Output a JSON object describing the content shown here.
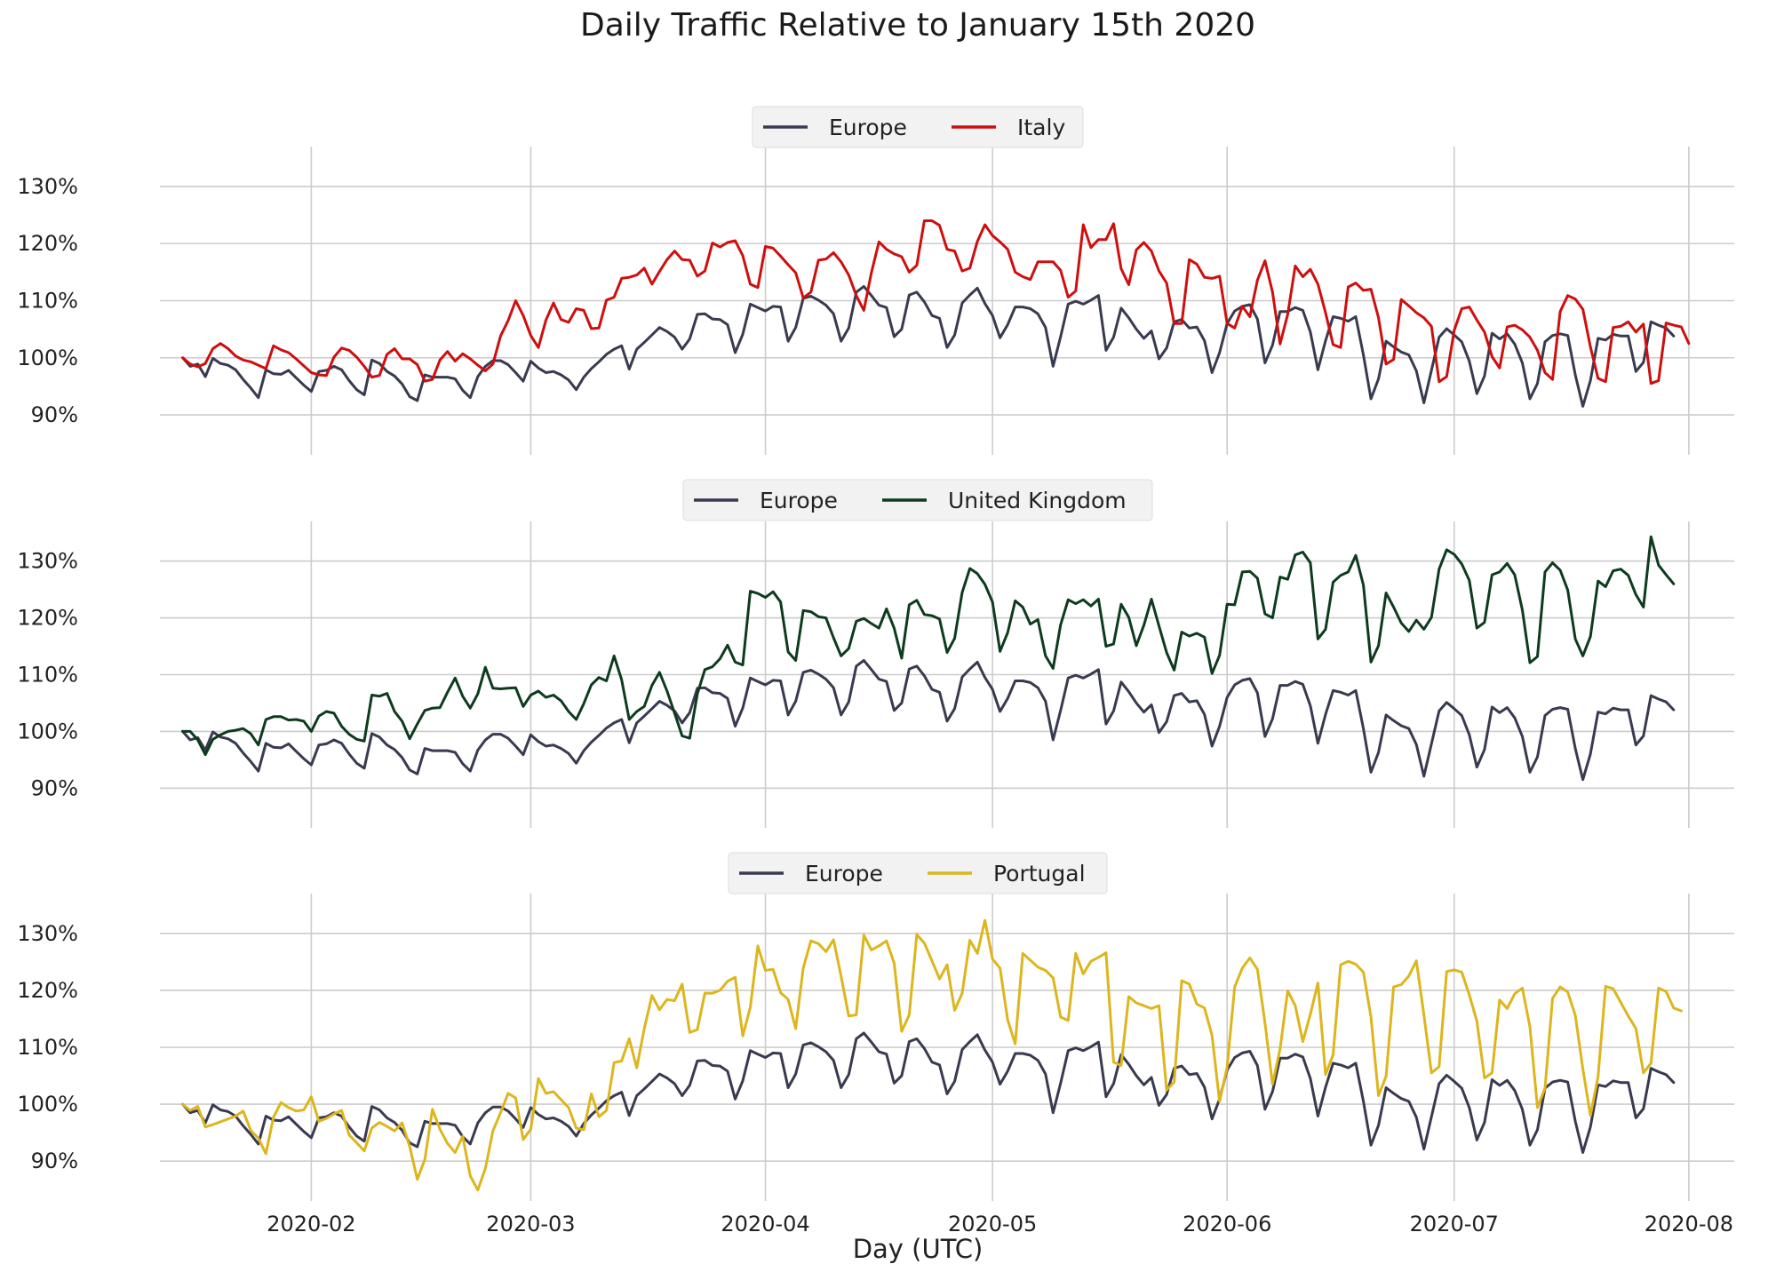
{
  "chart_data": {
    "type": "line",
    "title": "Daily Traffic Relative to January 15th 2020",
    "xlabel": "Day (UTC)",
    "start_date": "2020-01-15",
    "x_ticks": [
      "2020-02",
      "2020-03",
      "2020-04",
      "2020-05",
      "2020-06",
      "2020-07",
      "2020-08"
    ],
    "x_tick_day_index": [
      17,
      46,
      77,
      107,
      138,
      168,
      199
    ],
    "xlim_day_index": [
      -3,
      205
    ],
    "y_ticks": [
      "90%",
      "100%",
      "110%",
      "120%",
      "130%"
    ],
    "y_tick_values": [
      90,
      100,
      110,
      120,
      130
    ],
    "ylim": [
      83,
      137
    ],
    "grid": true,
    "legend_position": "top-center",
    "europe_series": [
      100,
      98.5,
      98.9,
      96.7,
      99.9,
      99.0,
      98.7,
      97.9,
      96.2,
      94.7,
      93.0,
      97.9,
      97.2,
      97.1,
      97.8,
      96.5,
      95.2,
      94.1,
      97.6,
      97.8,
      98.5,
      97.9,
      96.0,
      94.4,
      93.5,
      99.6,
      99.0,
      97.6,
      96.8,
      95.4,
      93.2,
      92.5,
      97.0,
      96.6,
      96.6,
      96.6,
      96.3,
      94.3,
      93.0,
      96.7,
      98.5,
      99.5,
      99.5,
      98.8,
      97.4,
      95.9,
      99.4,
      98.2,
      97.4,
      97.6,
      97.0,
      96.1,
      94.4,
      96.6,
      98.1,
      99.3,
      100.6,
      101.5,
      102.1,
      98.0,
      101.5,
      102.7,
      104.0,
      105.3,
      104.6,
      103.6,
      101.5,
      103.3,
      107.6,
      107.7,
      106.8,
      106.7,
      105.8,
      100.9,
      104.1,
      109.4,
      108.8,
      108.2,
      109.0,
      108.9,
      102.9,
      105.3,
      110.4,
      110.8,
      110.1,
      109.2,
      107.7,
      102.9,
      105.2,
      111.5,
      112.5,
      110.9,
      109.2,
      108.8,
      103.7,
      105.0,
      111.0,
      111.5,
      109.8,
      107.4,
      106.9,
      101.8,
      104.0,
      109.6,
      111.0,
      112.2,
      109.5,
      107.4,
      103.5,
      105.8,
      108.9,
      108.9,
      108.6,
      107.7,
      105.3,
      98.5,
      103.7,
      109.4,
      109.9,
      109.4,
      110.1,
      110.9,
      101.3,
      103.6,
      108.7,
      107.0,
      105.0,
      103.4,
      104.7,
      99.8,
      101.7,
      106.3,
      106.7,
      105.2,
      105.4,
      103.0,
      97.4,
      100.9,
      106.0,
      108.2,
      109.0,
      109.3,
      106.8,
      99.1,
      102.2,
      108.1,
      108.1,
      108.8,
      108.3,
      104.5,
      97.9,
      103.0,
      107.2,
      106.9,
      106.4,
      107.2,
      100.5,
      92.8,
      96.3,
      102.9,
      101.9,
      101.0,
      100.5,
      97.7,
      92.1,
      97.8,
      103.6,
      105.1,
      104.0,
      102.8,
      99.4,
      93.7,
      96.8,
      104.3,
      103.3,
      104.2,
      102.4,
      99.1,
      92.8,
      95.5,
      102.8,
      103.9,
      104.2,
      103.9,
      97.0,
      91.5,
      96.0,
      103.4,
      103.1,
      104.1,
      103.8,
      103.8,
      97.6,
      99.2,
      106.3,
      105.7,
      105.2,
      103.8
    ],
    "series_by_panel": [
      {
        "panel": "Italy",
        "series": [
          {
            "name": "Europe",
            "color": "#383a4f",
            "ref": "europe_series"
          },
          {
            "name": "Italy",
            "color": "#cf0e0e",
            "values": [
              100,
              98.9,
              98.4,
              99.0,
              101.6,
              102.5,
              101.6,
              100.3,
              99.6,
              99.3,
              98.7,
              98.1,
              102.1,
              101.4,
              100.9,
              99.8,
              98.6,
              97.4,
              97.0,
              96.9,
              100.1,
              101.7,
              101.3,
              100.1,
              98.5,
              96.6,
              96.9,
              100.6,
              101.6,
              99.8,
              99.8,
              98.8,
              95.9,
              96.2,
              99.6,
              101.1,
              99.4,
              100.7,
              99.8,
              98.7,
              97.7,
              98.9,
              103.8,
              106.5,
              110.0,
              107.4,
              103.9,
              101.8,
              106.6,
              109.6,
              106.7,
              106.2,
              108.6,
              108.3,
              105.1,
              105.2,
              110.1,
              110.6,
              113.9,
              114.1,
              114.5,
              115.7,
              112.9,
              115.1,
              117.2,
              118.7,
              117.2,
              117.1,
              114.3,
              115.2,
              120.1,
              119.4,
              120.2,
              120.5,
              117.9,
              112.9,
              112.3,
              119.5,
              119.2,
              117.8,
              116.3,
              114.9,
              110.5,
              111.5,
              117.1,
              117.3,
              118.4,
              116.8,
              114.5,
              110.9,
              108.3,
              114.9,
              120.3,
              119.0,
              118.2,
              117.7,
              115.0,
              116.2,
              124.0,
              124.0,
              123.2,
              119.0,
              118.7,
              115.2,
              115.7,
              120.4,
              123.3,
              121.4,
              120.3,
              119.0,
              115.0,
              114.2,
              113.7,
              116.8,
              116.8,
              116.8,
              115.3,
              110.6,
              111.7,
              123.3,
              119.3,
              120.7,
              120.7,
              123.5,
              115.6,
              112.8,
              118.9,
              120.2,
              118.7,
              115.2,
              113.1,
              106.0,
              106.0,
              117.2,
              116.4,
              114.1,
              113.9,
              114.3,
              106.0,
              105.2,
              109.0,
              107.2,
              113.6,
              117.0,
              111.5,
              102.4,
              107.6,
              116.1,
              114.2,
              115.5,
              112.9,
              107.9,
              102.3,
              101.8,
              112.4,
              113.1,
              111.8,
              112.0,
              107.0,
              98.9,
              99.7,
              110.2,
              109.1,
              107.9,
              107.0,
              105.5,
              95.8,
              96.7,
              104.8,
              108.6,
              108.9,
              106.6,
              104.5,
              100.2,
              98.2,
              105.4,
              105.7,
              104.9,
              103.6,
              101.3,
              97.4,
              96.2,
              108.1,
              110.9,
              110.3,
              108.5,
              101.9,
              96.4,
              95.8,
              105.3,
              105.5,
              106.3,
              104.5,
              105.9,
              95.5,
              96.0,
              106.1,
              105.7,
              105.4,
              102.5
            ]
          }
        ]
      },
      {
        "panel": "United Kingdom",
        "series": [
          {
            "name": "Europe",
            "color": "#383a4f",
            "ref": "europe_series"
          },
          {
            "name": "United Kingdom",
            "color": "#0d3b1e",
            "values": [
              100,
              100.0,
              98.5,
              95.9,
              98.6,
              99.4,
              100.0,
              100.2,
              100.5,
              99.6,
              97.6,
              102.1,
              102.6,
              102.6,
              102.0,
              102.1,
              101.8,
              100.0,
              102.7,
              103.5,
              103.2,
              100.9,
              99.5,
              98.6,
              98.3,
              106.4,
              106.2,
              106.7,
              103.5,
              101.8,
              98.7,
              101.3,
              103.7,
              104.1,
              104.2,
              106.9,
              109.4,
              106.2,
              104.1,
              106.6,
              111.3,
              107.6,
              107.5,
              107.6,
              107.7,
              104.4,
              106.4,
              107.1,
              106.0,
              106.4,
              105.4,
              103.5,
              102.1,
              104.9,
              108.2,
              109.5,
              108.9,
              113.3,
              109.1,
              102.1,
              103.5,
              104.4,
              108.1,
              110.4,
              107.1,
              103.2,
              99.2,
              98.8,
              106.6,
              110.9,
              111.4,
              112.8,
              115.2,
              112.2,
              111.7,
              124.7,
              124.3,
              123.6,
              124.6,
              122.8,
              114.0,
              112.5,
              121.3,
              121.1,
              120.2,
              120.0,
              116.5,
              113.3,
              114.6,
              119.4,
              119.9,
              119.0,
              118.2,
              121.6,
              118.2,
              112.9,
              122.3,
              123.1,
              120.6,
              120.4,
              119.8,
              113.9,
              116.4,
              124.5,
              128.7,
              127.8,
              125.9,
              122.8,
              114.1,
              117.4,
              123.0,
              121.9,
              118.9,
              119.7,
              113.3,
              111.1,
              118.8,
              123.2,
              122.5,
              123.2,
              122.1,
              123.3,
              115.0,
              115.4,
              122.4,
              120.1,
              115.1,
              118.7,
              123.3,
              118.6,
              113.9,
              110.8,
              117.5,
              116.8,
              117.3,
              116.6,
              110.2,
              113.4,
              122.4,
              122.3,
              128.1,
              128.2,
              127.0,
              120.7,
              120.0,
              127.2,
              126.8,
              131.1,
              131.6,
              129.7,
              116.3,
              118.0,
              126.3,
              127.5,
              128.1,
              131.0,
              125.8,
              112.2,
              115.1,
              124.4,
              121.9,
              119.1,
              117.6,
              119.6,
              118.0,
              120.1,
              128.6,
              132.0,
              131.2,
              129.5,
              126.6,
              118.2,
              119.2,
              127.6,
              128.1,
              129.6,
              127.6,
              121.4,
              112.1,
              113.2,
              128.1,
              129.7,
              128.4,
              124.9,
              116.3,
              113.3,
              116.7,
              126.5,
              125.5,
              128.3,
              128.6,
              127.5,
              124.1,
              121.9,
              134.3,
              129.3,
              127.6,
              126.0
            ]
          }
        ]
      },
      {
        "panel": "Portugal",
        "series": [
          {
            "name": "Europe",
            "color": "#383a4f",
            "ref": "europe_series"
          },
          {
            "name": "Portugal",
            "color": "#ddb51d",
            "values": [
              100,
              98.9,
              99.6,
              96.0,
              96.4,
              96.9,
              97.4,
              97.9,
              98.8,
              95.4,
              94.0,
              91.3,
              97.7,
              100.3,
              99.4,
              98.8,
              99.0,
              101.3,
              97.0,
              97.5,
              98.3,
              98.9,
              94.6,
              93.2,
              91.8,
              95.8,
              96.8,
              96.1,
              95.3,
              96.7,
              92.6,
              86.8,
              90.3,
              99.1,
              95.6,
              93.1,
              91.5,
              94.4,
              87.4,
              84.9,
              88.7,
              95.3,
              98.5,
              101.9,
              101.1,
              93.8,
              95.6,
              104.5,
              101.9,
              102.2,
              100.8,
              99.4,
              95.8,
              95.5,
              101.8,
              97.8,
              98.9,
              107.3,
              107.6,
              111.5,
              106.4,
              113.3,
              119.1,
              116.6,
              118.4,
              118.2,
              121.1,
              112.6,
              113.1,
              119.5,
              119.5,
              120.0,
              121.6,
              122.3,
              112.0,
              117.0,
              127.8,
              123.5,
              123.7,
              119.6,
              118.4,
              113.3,
              123.9,
              128.7,
              128.2,
              126.8,
              128.9,
              122.5,
              115.5,
              115.7,
              129.7,
              127.1,
              127.8,
              128.7,
              124.8,
              112.8,
              115.7,
              129.8,
              128.3,
              125.2,
              122.0,
              124.5,
              116.5,
              119.5,
              128.8,
              126.5,
              132.3,
              125.5,
              123.9,
              114.8,
              110.6,
              126.5,
              125.3,
              124.1,
              123.5,
              122.2,
              115.3,
              114.7,
              126.5,
              122.9,
              125.1,
              125.8,
              126.6,
              107.4,
              106.8,
              118.9,
              117.8,
              117.3,
              116.8,
              117.3,
              102.5,
              103.9,
              121.7,
              121.1,
              117.6,
              116.9,
              112.1,
              100.5,
              106.5,
              120.6,
              123.9,
              125.7,
              123.7,
              114.3,
              103.5,
              109.7,
              119.9,
              117.3,
              111.0,
              115.8,
              121.3,
              105.2,
              108.7,
              124.5,
              125.1,
              124.6,
              123.2,
              115.3,
              101.5,
              104.9,
              120.6,
              121.0,
              122.5,
              125.2,
              115.7,
              105.5,
              106.6,
              123.3,
              123.6,
              123.2,
              119.2,
              114.6,
              104.6,
              105.5,
              118.3,
              116.8,
              119.4,
              120.4,
              113.6,
              99.4,
              102.8,
              118.6,
              120.6,
              119.7,
              115.6,
              106.2,
              98.0,
              104.8,
              120.7,
              120.3,
              117.9,
              115.5,
              113.3,
              105.5,
              107.2,
              120.4,
              119.8,
              116.9,
              116.4
            ]
          }
        ]
      }
    ]
  }
}
